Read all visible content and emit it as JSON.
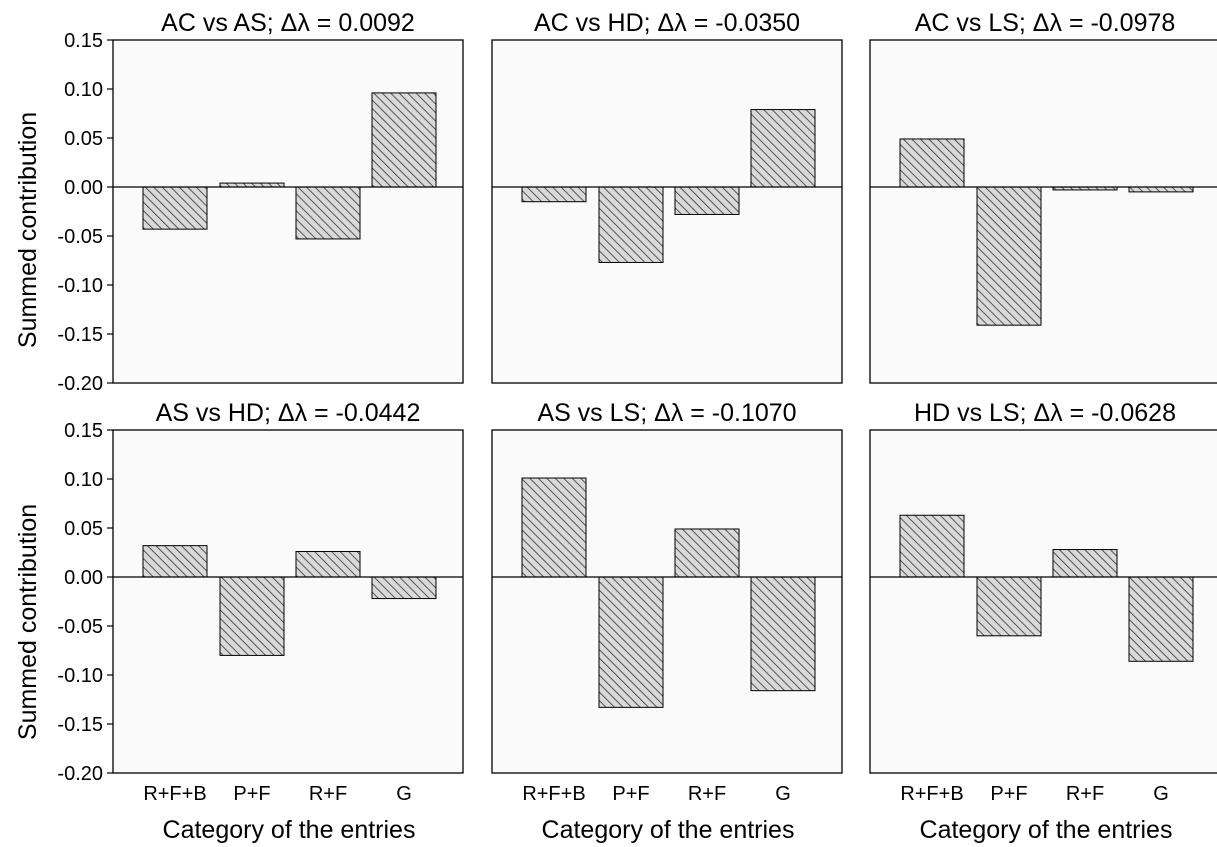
{
  "figure": {
    "ylabel": "Summed contribution",
    "xlabel": "Category of the entries"
  },
  "colors": {
    "panel_background": "#fafafa",
    "bar_fill": "#d9d9d9",
    "bar_hatch": "#333333",
    "axis": "#000000"
  },
  "chart_data": [
    {
      "type": "bar",
      "title": "AC vs AS; Δλ = 0.0092",
      "categories": [
        "R+F+B",
        "P+F",
        "R+F",
        "G"
      ],
      "values": [
        -0.043,
        0.004,
        -0.053,
        0.096
      ],
      "ylim": [
        -0.2,
        0.15
      ],
      "yticks": [
        "0.15",
        "0.10",
        "0.05",
        "0.00",
        "-0.05",
        "-0.10",
        "-0.15",
        "-0.20"
      ]
    },
    {
      "type": "bar",
      "title": "AC vs HD; Δλ = -0.0350",
      "categories": [
        "R+F+B",
        "P+F",
        "R+F",
        "G"
      ],
      "values": [
        -0.015,
        -0.077,
        -0.028,
        0.079
      ],
      "ylim": [
        -0.2,
        0.15
      ]
    },
    {
      "type": "bar",
      "title": "AC vs LS; Δλ = -0.0978",
      "categories": [
        "R+F+B",
        "P+F",
        "R+F",
        "G"
      ],
      "values": [
        0.049,
        -0.141,
        -0.003,
        -0.005
      ],
      "ylim": [
        -0.2,
        0.15
      ]
    },
    {
      "type": "bar",
      "title": "AS vs HD; Δλ = -0.0442",
      "categories": [
        "R+F+B",
        "P+F",
        "R+F",
        "G"
      ],
      "values": [
        0.032,
        -0.08,
        0.026,
        -0.022
      ],
      "ylim": [
        -0.2,
        0.15
      ],
      "yticks": [
        "0.15",
        "0.10",
        "0.05",
        "0.00",
        "-0.05",
        "-0.10",
        "-0.15",
        "-0.20"
      ]
    },
    {
      "type": "bar",
      "title": "AS vs LS; Δλ = -0.1070",
      "categories": [
        "R+F+B",
        "P+F",
        "R+F",
        "G"
      ],
      "values": [
        0.101,
        -0.133,
        0.049,
        -0.116
      ],
      "ylim": [
        -0.2,
        0.15
      ]
    },
    {
      "type": "bar",
      "title": "HD vs LS; Δλ = -0.0628",
      "categories": [
        "R+F+B",
        "P+F",
        "R+F",
        "G"
      ],
      "values": [
        0.063,
        -0.06,
        0.028,
        -0.086
      ],
      "ylim": [
        -0.2,
        0.15
      ]
    }
  ]
}
